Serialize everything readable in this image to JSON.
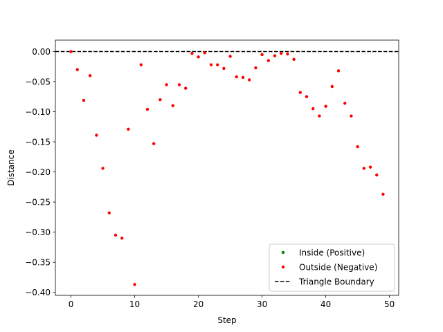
{
  "chart_data": {
    "type": "scatter",
    "title": "",
    "xlabel": "Step",
    "ylabel": "Distance",
    "xlim": [
      -2.45,
      51.45
    ],
    "ylim": [
      -0.405,
      0.019
    ],
    "xticks": [
      0,
      10,
      20,
      30,
      40,
      50
    ],
    "xtick_labels": [
      "0",
      "10",
      "20",
      "30",
      "40",
      "50"
    ],
    "yticks": [
      0.0,
      -0.05,
      -0.1,
      -0.15,
      -0.2,
      -0.25,
      -0.3,
      -0.35,
      -0.4
    ],
    "ytick_labels": [
      "0.00",
      "−0.05",
      "−0.10",
      "−0.15",
      "−0.20",
      "−0.25",
      "−0.30",
      "−0.35",
      "−0.40"
    ],
    "grid": false,
    "legend_position": "bottom-right",
    "legend": [
      {
        "label": "Inside (Positive)",
        "kind": "marker",
        "color": "#008000"
      },
      {
        "label": "Outside (Negative)",
        "kind": "marker",
        "color": "#ff0000"
      },
      {
        "label": "Triangle Boundary",
        "kind": "dashed-line",
        "color": "#000000"
      }
    ],
    "boundary": {
      "y": 0.0,
      "color": "#000000",
      "style": "dashed"
    },
    "series": [
      {
        "name": "Inside (Positive)",
        "color": "#008000",
        "x": [],
        "y": []
      },
      {
        "name": "Outside (Negative)",
        "color": "#ff0000",
        "x": [
          0,
          1,
          2,
          3,
          4,
          5,
          6,
          7,
          8,
          9,
          10,
          11,
          12,
          13,
          14,
          15,
          16,
          17,
          18,
          19,
          20,
          21,
          22,
          23,
          24,
          25,
          26,
          27,
          28,
          29,
          30,
          31,
          32,
          33,
          34,
          35,
          36,
          37,
          38,
          39,
          40,
          41,
          42,
          43,
          44,
          45,
          46,
          47,
          48,
          49
        ],
        "y": [
          0.0,
          -0.03,
          -0.081,
          -0.04,
          -0.139,
          -0.194,
          -0.268,
          -0.305,
          -0.31,
          -0.129,
          -0.387,
          -0.022,
          -0.096,
          -0.153,
          -0.08,
          -0.055,
          -0.09,
          -0.055,
          -0.061,
          -0.003,
          -0.009,
          -0.002,
          -0.022,
          -0.022,
          -0.028,
          -0.008,
          -0.042,
          -0.043,
          -0.047,
          -0.027,
          -0.005,
          -0.015,
          -0.007,
          -0.003,
          -0.004,
          -0.013,
          -0.068,
          -0.075,
          -0.095,
          -0.107,
          -0.091,
          -0.058,
          -0.032,
          -0.086,
          -0.107,
          -0.158,
          -0.194,
          -0.192,
          -0.205,
          -0.237
        ]
      }
    ]
  }
}
